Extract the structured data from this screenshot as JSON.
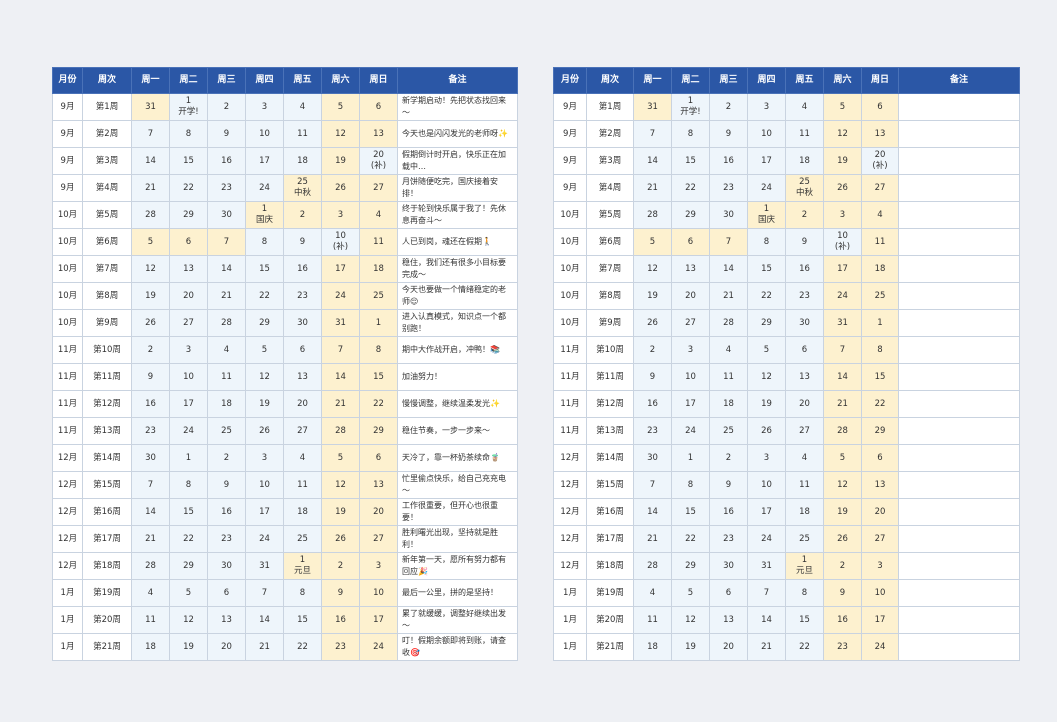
{
  "header": [
    "月份",
    "周次",
    "周一",
    "周二",
    "周三",
    "周四",
    "周五",
    "周六",
    "周日",
    "备注"
  ],
  "rest_color": "#fdf1cf",
  "work_color": "#eef5fb",
  "rows": [
    {
      "month": "9月",
      "week": "第1周",
      "days": [
        "31",
        "1\n开学!",
        "2",
        "3",
        "4",
        "5",
        "6"
      ],
      "note": "新学期启动！先把状态找回来～",
      "rest": [
        0,
        5,
        6
      ]
    },
    {
      "month": "9月",
      "week": "第2周",
      "days": [
        "7",
        "8",
        "9",
        "10",
        "11",
        "12",
        "13"
      ],
      "note": "今天也是闪闪发光的老师呀✨",
      "rest": [
        5,
        6
      ]
    },
    {
      "month": "9月",
      "week": "第3周",
      "days": [
        "14",
        "15",
        "16",
        "17",
        "18",
        "19",
        "20\n(补)"
      ],
      "note": "假期倒计时开启，快乐正在加载中…",
      "rest": [
        5
      ]
    },
    {
      "month": "9月",
      "week": "第4周",
      "days": [
        "21",
        "22",
        "23",
        "24",
        "25\n中秋",
        "26",
        "27"
      ],
      "note": "月饼随便吃完，国庆接着安排！",
      "rest": [
        4,
        5,
        6
      ]
    },
    {
      "month": "10月",
      "week": "第5周",
      "days": [
        "28",
        "29",
        "30",
        "1\n国庆",
        "2",
        "3",
        "4"
      ],
      "note": "终于轮到快乐属于我了！先休息再奋斗～",
      "rest": [
        3,
        4,
        5,
        6
      ]
    },
    {
      "month": "10月",
      "week": "第6周",
      "days": [
        "5",
        "6",
        "7",
        "8",
        "9",
        "10\n(补)",
        "11"
      ],
      "note": "人已到岗，魂还在假期🚶",
      "rest": [
        0,
        1,
        2,
        6
      ]
    },
    {
      "month": "10月",
      "week": "第7周",
      "days": [
        "12",
        "13",
        "14",
        "15",
        "16",
        "17",
        "18"
      ],
      "note": "稳住，我们还有很多小目标要完成～",
      "rest": [
        5,
        6
      ]
    },
    {
      "month": "10月",
      "week": "第8周",
      "days": [
        "19",
        "20",
        "21",
        "22",
        "23",
        "24",
        "25"
      ],
      "note": "今天也要做一个情绪稳定的老师😌",
      "rest": [
        5,
        6
      ]
    },
    {
      "month": "10月",
      "week": "第9周",
      "days": [
        "26",
        "27",
        "28",
        "29",
        "30",
        "31",
        "1"
      ],
      "note": "进入认真模式，知识点一个都别跑！",
      "rest": [
        5,
        6
      ]
    },
    {
      "month": "11月",
      "week": "第10周",
      "days": [
        "2",
        "3",
        "4",
        "5",
        "6",
        "7",
        "8"
      ],
      "note": "期中大作战开启，冲鸭！📚",
      "rest": [
        5,
        6
      ]
    },
    {
      "month": "11月",
      "week": "第11周",
      "days": [
        "9",
        "10",
        "11",
        "12",
        "13",
        "14",
        "15"
      ],
      "note": "加油努力！",
      "rest": [
        5,
        6
      ]
    },
    {
      "month": "11月",
      "week": "第12周",
      "days": [
        "16",
        "17",
        "18",
        "19",
        "20",
        "21",
        "22"
      ],
      "note": "慢慢调整，继续温柔发光✨",
      "rest": [
        5,
        6
      ]
    },
    {
      "month": "11月",
      "week": "第13周",
      "days": [
        "23",
        "24",
        "25",
        "26",
        "27",
        "28",
        "29"
      ],
      "note": "稳住节奏，一步一步来～",
      "rest": [
        5,
        6
      ]
    },
    {
      "month": "12月",
      "week": "第14周",
      "days": [
        "30",
        "1",
        "2",
        "3",
        "4",
        "5",
        "6"
      ],
      "note": "天冷了，靠一杯奶茶续命🧋",
      "rest": [
        5,
        6
      ]
    },
    {
      "month": "12月",
      "week": "第15周",
      "days": [
        "7",
        "8",
        "9",
        "10",
        "11",
        "12",
        "13"
      ],
      "note": "忙里偷点快乐，给自己充充电～",
      "rest": [
        5,
        6
      ]
    },
    {
      "month": "12月",
      "week": "第16周",
      "days": [
        "14",
        "15",
        "16",
        "17",
        "18",
        "19",
        "20"
      ],
      "note": "工作很重要，但开心也很重要！",
      "rest": [
        5,
        6
      ]
    },
    {
      "month": "12月",
      "week": "第17周",
      "days": [
        "21",
        "22",
        "23",
        "24",
        "25",
        "26",
        "27"
      ],
      "note": "胜利曙光出现，坚持就是胜利！",
      "rest": [
        5,
        6
      ]
    },
    {
      "month": "12月",
      "week": "第18周",
      "days": [
        "28",
        "29",
        "30",
        "31",
        "1\n元旦",
        "2",
        "3"
      ],
      "note": "新年第一天，愿所有努力都有回应🎉",
      "rest": [
        4,
        5,
        6
      ]
    },
    {
      "month": "1月",
      "week": "第19周",
      "days": [
        "4",
        "5",
        "6",
        "7",
        "8",
        "9",
        "10"
      ],
      "note": "最后一公里，拼的是坚持！",
      "rest": [
        5,
        6
      ]
    },
    {
      "month": "1月",
      "week": "第20周",
      "days": [
        "11",
        "12",
        "13",
        "14",
        "15",
        "16",
        "17"
      ],
      "note": "累了就缓缓，调整好继续出发～",
      "rest": [
        5,
        6
      ]
    },
    {
      "month": "1月",
      "week": "第21周",
      "days": [
        "18",
        "19",
        "20",
        "21",
        "22",
        "23",
        "24"
      ],
      "note": "叮！假期余额即将到账，请查收🎯",
      "rest": [
        5,
        6
      ]
    }
  ]
}
